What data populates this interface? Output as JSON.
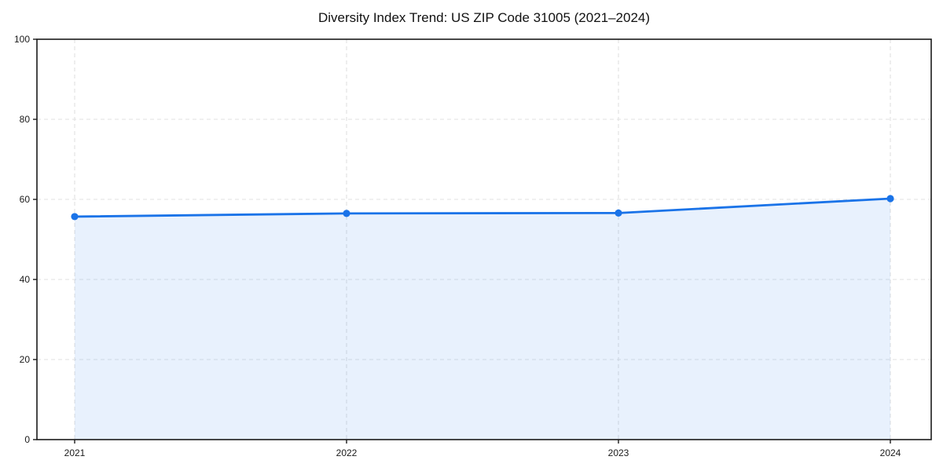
{
  "chart_data": {
    "type": "area",
    "title": "Diversity Index Trend: US ZIP Code 31005 (2021–2024)",
    "x": [
      "2021",
      "2022",
      "2023",
      "2024"
    ],
    "series": [
      {
        "name": "Diversity Index",
        "values": [
          55.7,
          56.5,
          56.6,
          60.2
        ]
      }
    ],
    "xlabel": "",
    "ylabel": "",
    "ylim": [
      0,
      100
    ],
    "yticks": [
      0,
      20,
      40,
      60,
      80,
      100
    ],
    "grid": true,
    "grid_style": "dashed",
    "legend_position": "none",
    "colors": {
      "line": "#1a73e8",
      "marker": "#1a73e8",
      "fill": "rgba(26,115,232,0.10)",
      "grid": "#e1e1e1",
      "spine": "#1a1a1a",
      "tick_label": "#1a1a1a",
      "title": "#111111",
      "background": "#ffffff"
    }
  }
}
